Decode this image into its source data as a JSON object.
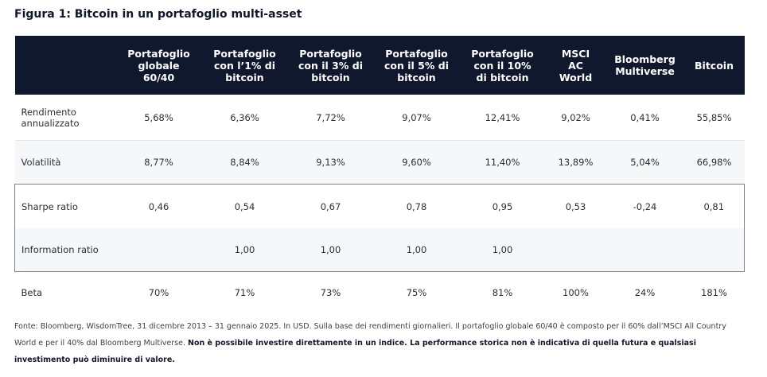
{
  "title": "Figura 1: Bitcoin in un portafoglio multi-asset",
  "columns": [
    [
      "Portafoglio",
      "globale",
      "60/40"
    ],
    [
      "Portafoglio",
      "con l’1% di",
      "bitcoin"
    ],
    [
      "Portafoglio",
      "con il 3% di",
      "bitcoin"
    ],
    [
      "Portafoglio",
      "con il 5% di",
      "bitcoin"
    ],
    [
      "Portafoglio",
      "con il 10%",
      "di bitcoin"
    ],
    [
      "MSCI",
      "AC",
      "World"
    ],
    [
      "Bloomberg",
      "Multiverse"
    ],
    [
      "Bitcoin"
    ]
  ],
  "rows": [
    {
      "label": [
        "Rendimento",
        "annualizzato"
      ],
      "values": [
        "5,68%",
        "6,36%",
        "7,72%",
        "9,07%",
        "12,41%",
        "9,02%",
        "0,41%",
        "55,85%"
      ]
    },
    {
      "label": [
        "Volatilità"
      ],
      "values": [
        "8,77%",
        "8,84%",
        "9,13%",
        "9,60%",
        "11,40%",
        "13,89%",
        "5,04%",
        "66,98%"
      ]
    },
    {
      "label": [
        "Sharpe ratio"
      ],
      "values": [
        "0,46",
        "0,54",
        "0,67",
        "0,78",
        "0,95",
        "0,53",
        "-0,24",
        "0,81"
      ]
    },
    {
      "label": [
        "Information ratio"
      ],
      "values": [
        "",
        "1,00",
        "1,00",
        "1,00",
        "1,00",
        "",
        "",
        ""
      ]
    },
    {
      "label": [
        "Beta"
      ],
      "values": [
        "70%",
        "71%",
        "73%",
        "75%",
        "81%",
        "100%",
        "24%",
        "181%"
      ]
    }
  ],
  "footnote": {
    "normal": "Fonte: Bloomberg, WisdomTree, 31 dicembre 2013 – 31 gennaio 2025. In USD. Sulla base dei rendimenti giornalieri. Il portafoglio globale 60/40 è composto per il 60% dall’MSCI All Country World e per il 40% dal Bloomberg Multiverse.",
    "bold": "Non è possibile investire direttamente in un indice. La performance storica non è indicativa di quella futura e qualsiasi investimento può diminuire di valore."
  }
}
